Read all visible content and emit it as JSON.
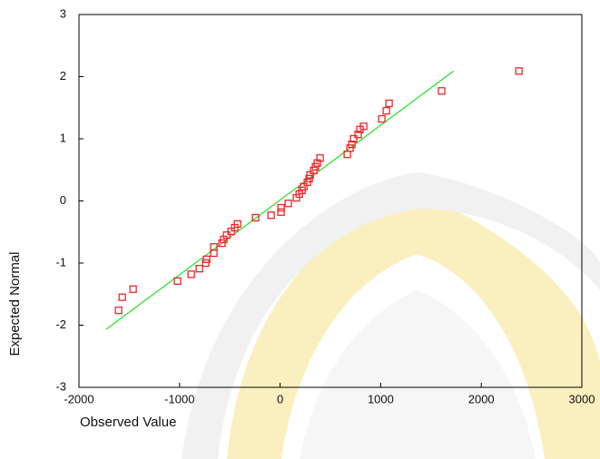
{
  "chart_data": {
    "type": "scatter",
    "x_label": "Observed Value",
    "y_label": "Expected Normal",
    "xlim": [
      -2000,
      3000
    ],
    "ylim": [
      -3,
      3
    ],
    "xticks": [
      -2000,
      -1000,
      0,
      1000,
      2000,
      3000
    ],
    "yticks": [
      -3,
      -2,
      -1,
      0,
      1,
      2,
      3
    ],
    "marker_color": "#e8262b",
    "x": [
      -1606,
      -1570,
      -1462,
      -1020,
      -884,
      -803,
      -740,
      -731,
      -659,
      -659,
      -578,
      -560,
      -532,
      -487,
      -451,
      -424,
      -244,
      -90,
      9,
      9,
      81,
      162,
      190,
      217,
      235,
      271,
      289,
      298,
      334,
      352,
      370,
      397,
      668,
      695,
      713,
      731,
      776,
      794,
      830,
      1011,
      1056,
      1083,
      1606,
      2374
    ],
    "y": [
      -1.76,
      -1.55,
      -1.42,
      -1.29,
      -1.18,
      -1.09,
      -1.0,
      -0.94,
      -0.84,
      -0.74,
      -0.68,
      -0.62,
      -0.55,
      -0.49,
      -0.43,
      -0.37,
      -0.27,
      -0.23,
      -0.18,
      -0.11,
      -0.04,
      0.05,
      0.11,
      0.17,
      0.23,
      0.3,
      0.36,
      0.42,
      0.49,
      0.55,
      0.61,
      0.69,
      0.75,
      0.85,
      0.91,
      1.0,
      1.07,
      1.15,
      1.2,
      1.32,
      1.45,
      1.57,
      1.77,
      2.09
    ],
    "line": {
      "x": [
        -1733,
        1724
      ],
      "y": [
        -2.07,
        2.09
      ],
      "color": "#22e022"
    }
  }
}
